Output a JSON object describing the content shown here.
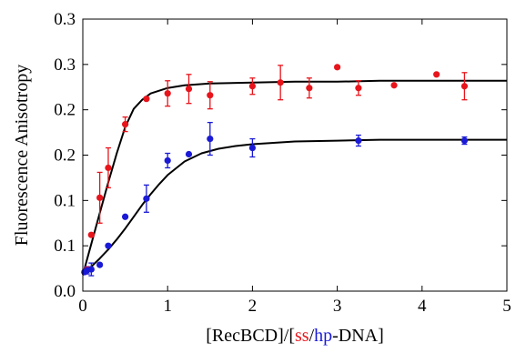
{
  "chart_data": {
    "type": "scatter",
    "title": "",
    "xlabel_parts": [
      "[RecBCD]/[",
      "ss",
      "/",
      "hp",
      "-DNA]"
    ],
    "ylabel": "Fluorescence Anisotropy",
    "xlim": [
      0,
      5
    ],
    "ylim": [
      0,
      0.3
    ],
    "x_ticks": [
      "0",
      "1",
      "2",
      "3",
      "4",
      "5"
    ],
    "y_ticks": [
      {
        "value": 0,
        "label": "0.0"
      },
      {
        "value": 0.05,
        "label": "0.1"
      },
      {
        "value": 0.1,
        "label": "0.1"
      },
      {
        "value": 0.15,
        "label": "0.2"
      },
      {
        "value": 0.2,
        "label": "0.2"
      },
      {
        "value": 0.25,
        "label": "0.3"
      },
      {
        "value": 0.3,
        "label": "0.3"
      }
    ],
    "grid": false,
    "legend": "none",
    "series": [
      {
        "color": "#e8141b",
        "points": [
          {
            "x": 0.02,
            "y": 0.021,
            "err": 0
          },
          {
            "x": 0.05,
            "y": 0.024,
            "err": 0
          },
          {
            "x": 0.1,
            "y": 0.062,
            "err": 0
          },
          {
            "x": 0.2,
            "y": 0.103,
            "err": 0.028
          },
          {
            "x": 0.3,
            "y": 0.136,
            "err": 0.022
          },
          {
            "x": 0.5,
            "y": 0.184,
            "err": 0.008
          },
          {
            "x": 0.75,
            "y": 0.212,
            "err": 0
          },
          {
            "x": 1.0,
            "y": 0.218,
            "err": 0.014
          },
          {
            "x": 1.25,
            "y": 0.223,
            "err": 0.016
          },
          {
            "x": 1.5,
            "y": 0.216,
            "err": 0.015
          },
          {
            "x": 2.0,
            "y": 0.226,
            "err": 0.009
          },
          {
            "x": 2.33,
            "y": 0.23,
            "err": 0.019
          },
          {
            "x": 2.67,
            "y": 0.224,
            "err": 0.011
          },
          {
            "x": 3.0,
            "y": 0.247,
            "err": 0
          },
          {
            "x": 3.25,
            "y": 0.224,
            "err": 0.008
          },
          {
            "x": 3.67,
            "y": 0.227,
            "err": 0
          },
          {
            "x": 4.17,
            "y": 0.239,
            "err": 0
          },
          {
            "x": 4.5,
            "y": 0.226,
            "err": 0.015
          }
        ],
        "fit": {
          "x": [
            0,
            0.1,
            0.2,
            0.3,
            0.4,
            0.5,
            0.6,
            0.7,
            0.8,
            0.9,
            1.0,
            1.2,
            1.5,
            2.0,
            2.5,
            3.0,
            3.5,
            4.0,
            4.5,
            5.0
          ],
          "y": [
            0.018,
            0.052,
            0.086,
            0.12,
            0.152,
            0.181,
            0.201,
            0.211,
            0.218,
            0.221,
            0.224,
            0.227,
            0.229,
            0.23,
            0.231,
            0.231,
            0.232,
            0.232,
            0.232,
            0.232
          ]
        }
      },
      {
        "color": "#1a1ad6",
        "points": [
          {
            "x": 0.02,
            "y": 0.021,
            "err": 0
          },
          {
            "x": 0.05,
            "y": 0.023,
            "err": 0.004
          },
          {
            "x": 0.1,
            "y": 0.024,
            "err": 0.007
          },
          {
            "x": 0.2,
            "y": 0.029,
            "err": 0
          },
          {
            "x": 0.3,
            "y": 0.05,
            "err": 0
          },
          {
            "x": 0.5,
            "y": 0.082,
            "err": 0
          },
          {
            "x": 0.75,
            "y": 0.102,
            "err": 0.015
          },
          {
            "x": 1.0,
            "y": 0.144,
            "err": 0.008
          },
          {
            "x": 1.25,
            "y": 0.151,
            "err": 0
          },
          {
            "x": 1.5,
            "y": 0.168,
            "err": 0.018
          },
          {
            "x": 2.0,
            "y": 0.158,
            "err": 0.01
          },
          {
            "x": 3.25,
            "y": 0.166,
            "err": 0.006
          },
          {
            "x": 4.5,
            "y": 0.166,
            "err": 0.004
          }
        ],
        "fit": {
          "x": [
            0,
            0.1,
            0.2,
            0.3,
            0.4,
            0.5,
            0.6,
            0.7,
            0.8,
            0.9,
            1.0,
            1.2,
            1.4,
            1.6,
            1.8,
            2.0,
            2.5,
            3.0,
            3.5,
            4.0,
            4.5,
            5.0
          ],
          "y": [
            0.018,
            0.027,
            0.036,
            0.046,
            0.057,
            0.069,
            0.082,
            0.095,
            0.107,
            0.118,
            0.128,
            0.143,
            0.152,
            0.157,
            0.16,
            0.162,
            0.165,
            0.166,
            0.167,
            0.167,
            0.167,
            0.167
          ]
        }
      }
    ]
  }
}
